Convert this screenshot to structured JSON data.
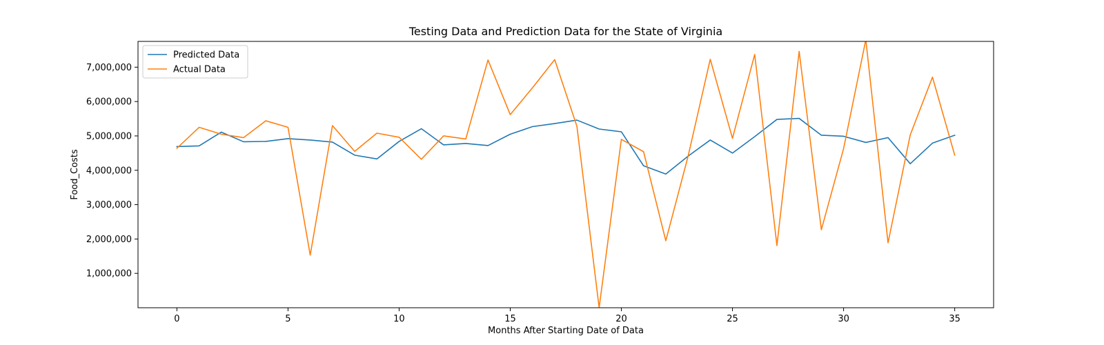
{
  "chart_data": {
    "type": "line",
    "title": "Testing Data and Prediction Data for the State of Virginia",
    "xlabel": "Months After Starting Date of Data",
    "ylabel": "Food_Costs",
    "xlim": [
      -1.75,
      36.75
    ],
    "ylim": [
      0,
      7750000
    ],
    "x_ticks": [
      0,
      5,
      10,
      15,
      20,
      25,
      30,
      35
    ],
    "y_ticks": [
      1000000,
      2000000,
      3000000,
      4000000,
      5000000,
      6000000,
      7000000
    ],
    "y_tick_labels": [
      "1,000,000",
      "2,000,000",
      "3,000,000",
      "4,000,000",
      "5,000,000",
      "6,000,000",
      "7,000,000"
    ],
    "grid": false,
    "legend_position": "top-left",
    "x": [
      0,
      1,
      2,
      3,
      4,
      5,
      6,
      7,
      8,
      9,
      10,
      11,
      12,
      13,
      14,
      15,
      16,
      17,
      18,
      19,
      20,
      21,
      22,
      23,
      24,
      25,
      26,
      27,
      28,
      29,
      30,
      31,
      32,
      33,
      34,
      35
    ],
    "series": [
      {
        "name": "Predicted Data",
        "color": "#1f77b4",
        "values": [
          4690000,
          4710000,
          5110000,
          4830000,
          4840000,
          4920000,
          4880000,
          4820000,
          4440000,
          4330000,
          4840000,
          5210000,
          4740000,
          4780000,
          4720000,
          5050000,
          5270000,
          5360000,
          5460000,
          5200000,
          5120000,
          4130000,
          3890000,
          4410000,
          4880000,
          4500000,
          4980000,
          5480000,
          5510000,
          5020000,
          4990000,
          4810000,
          4950000,
          4190000,
          4790000,
          5020000
        ]
      },
      {
        "name": "Actual Data",
        "color": "#ff7f0e",
        "values": [
          4640000,
          5250000,
          5050000,
          4950000,
          5440000,
          5250000,
          1530000,
          5300000,
          4550000,
          5080000,
          4960000,
          4320000,
          5000000,
          4910000,
          7210000,
          5620000,
          6400000,
          7220000,
          5280000,
          0,
          4900000,
          4540000,
          1950000,
          4400000,
          7230000,
          4930000,
          7370000,
          1810000,
          7460000,
          2270000,
          4630000,
          7800000,
          1890000,
          5030000,
          6710000,
          4440000
        ]
      }
    ]
  }
}
